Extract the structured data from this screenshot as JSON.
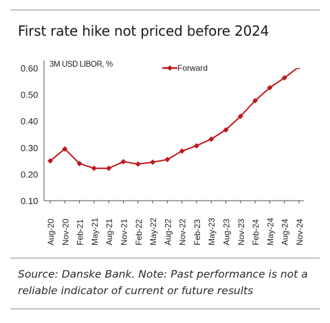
{
  "title": "First rate hike not priced before 2024",
  "source": "Source: Danske Bank. Note: Past performance is not a reliable indicator of current or future results",
  "colors": {
    "series": "#c0171c",
    "axis": "#4d4d4d",
    "rule": "#8c8c8c"
  },
  "chart_data": {
    "type": "line",
    "title": "First rate hike not priced before 2024",
    "ylabel": "3M USD LIBOR, %",
    "xlabel": "",
    "ylim": [
      0.1,
      0.6
    ],
    "yticks": [
      "0.60",
      "0.50",
      "0.40",
      "0.30",
      "0.20",
      "0.10"
    ],
    "grid": false,
    "legend": "top-center",
    "categories": [
      "Aug-20",
      "Nov-20",
      "Feb-21",
      "May-21",
      "Aug-21",
      "Nov-21",
      "Feb-22",
      "May-22",
      "Aug-22",
      "Nov-22",
      "Feb-23",
      "May-23",
      "Aug-23",
      "Nov-23",
      "Feb-24",
      "May-24",
      "Aug-24",
      "Nov-24"
    ],
    "series": [
      {
        "name": "Forward",
        "color": "#c0171c",
        "values": [
          0.25,
          0.295,
          0.24,
          0.222,
          0.222,
          0.247,
          0.238,
          0.245,
          0.255,
          0.287,
          0.307,
          0.332,
          0.367,
          0.418,
          0.477,
          0.526,
          0.563,
          0.605
        ]
      }
    ]
  }
}
